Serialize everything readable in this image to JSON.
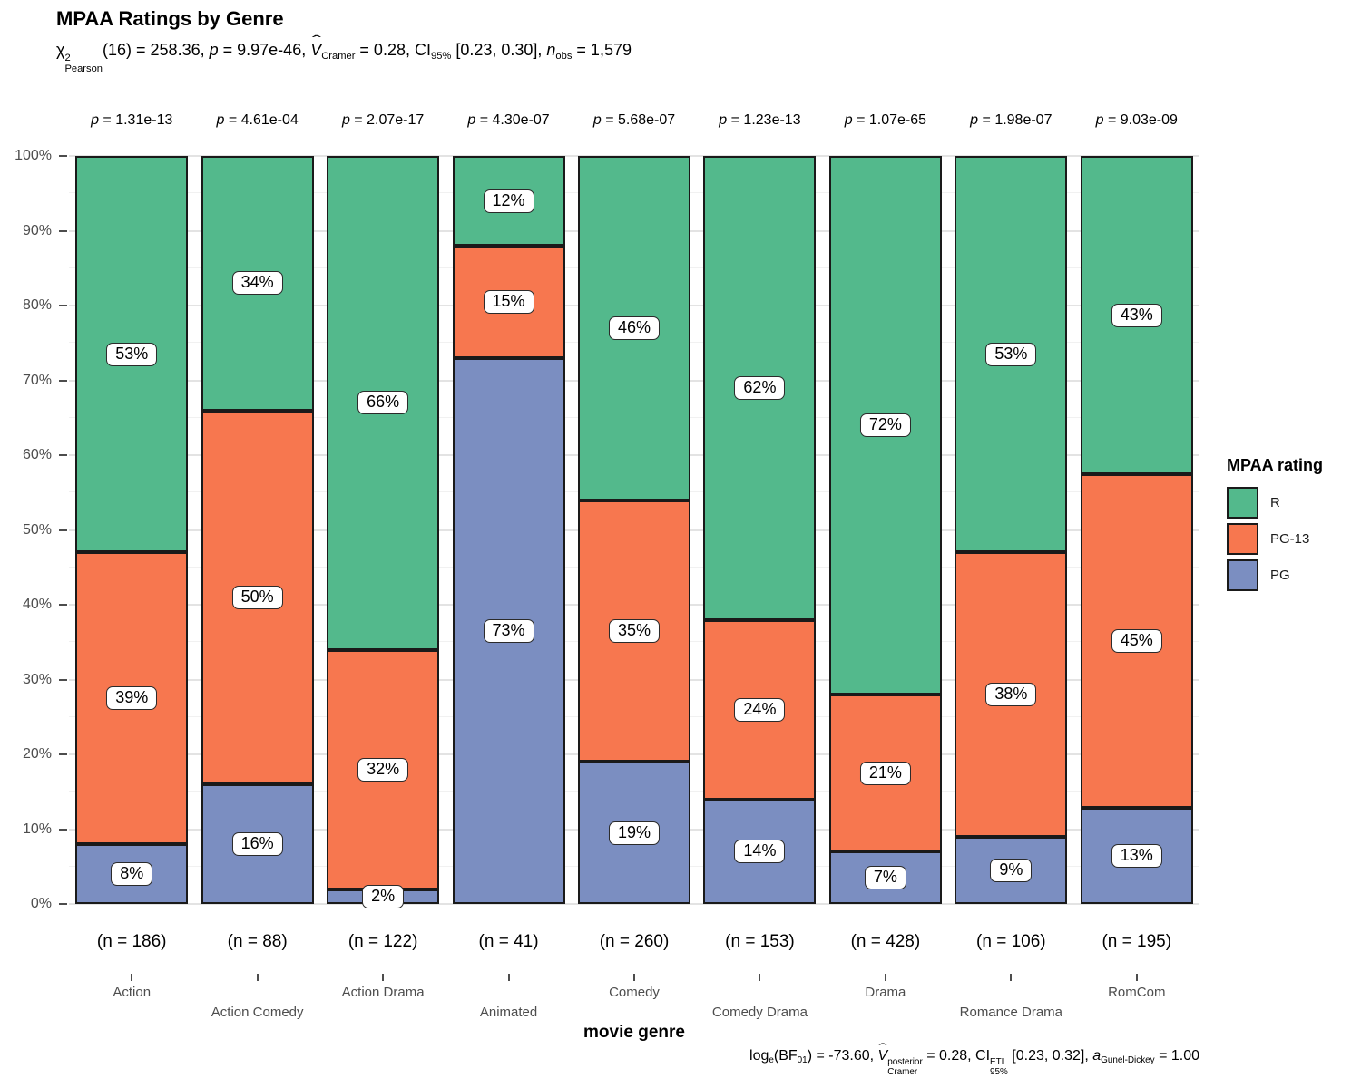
{
  "title": "MPAA Ratings by Genre",
  "xlabel": "movie genre",
  "subtitle_tokens": [
    {
      "t": "χ"
    },
    {
      "stack": {
        "sup": "2",
        "sub": "Pearson"
      }
    },
    {
      "t": "(16) = 258.36, "
    },
    {
      "t": "p",
      "i": true
    },
    {
      "t": " = 9.97e-46, "
    },
    {
      "t": "V",
      "i": true,
      "hat": true
    },
    {
      "sub": "Cramer"
    },
    {
      "t": " = 0.28, CI"
    },
    {
      "sub": "95%"
    },
    {
      "t": " [0.23, 0.30], "
    },
    {
      "t": "n",
      "i": true
    },
    {
      "sub": "obs"
    },
    {
      "t": " = 1,579"
    }
  ],
  "caption_tokens": [
    {
      "t": "log"
    },
    {
      "sub": "e"
    },
    {
      "t": "(BF"
    },
    {
      "sub": "01"
    },
    {
      "t": ") = -73.60, "
    },
    {
      "t": "V",
      "i": true,
      "hat": true
    },
    {
      "stack": {
        "sup": "posterior",
        "sub": "Cramer"
      }
    },
    {
      "t": " = 0.28, CI"
    },
    {
      "stack": {
        "sup": "ETI",
        "sub": "95%"
      }
    },
    {
      "t": " [0.23, 0.32], "
    },
    {
      "t": "a",
      "i": true
    },
    {
      "sub": "Gunel-Dickey"
    },
    {
      "t": " = 1.00"
    }
  ],
  "legend": {
    "title": "MPAA rating",
    "items": [
      {
        "label": "R",
        "color": "#53B98C"
      },
      {
        "label": "PG-13",
        "color": "#F7774F"
      },
      {
        "label": "PG",
        "color": "#7B8EC1"
      }
    ]
  },
  "chart_data": {
    "type": "bar",
    "stacked": true,
    "percent_normalized": true,
    "title": "MPAA Ratings by Genre",
    "xlabel": "movie genre",
    "ylabel": "",
    "ylim": [
      0,
      100
    ],
    "y_major_step": 10,
    "y_minor_step": 5,
    "y_tick_suffix": "%",
    "grid": true,
    "legend_position": "right",
    "categories": [
      "Action",
      "Action Comedy",
      "Action Drama",
      "Animated",
      "Comedy",
      "Comedy Drama",
      "Drama",
      "Romance Drama",
      "RomCom"
    ],
    "n_labels": [
      "(n = 186)",
      "(n = 88)",
      "(n = 122)",
      "(n = 41)",
      "(n = 260)",
      "(n = 153)",
      "(n = 428)",
      "(n = 106)",
      "(n = 195)"
    ],
    "p_labels": [
      "p = 1.31e-13",
      "p = 4.61e-04",
      "p = 2.07e-17",
      "p = 4.30e-07",
      "p = 5.68e-07",
      "p = 1.23e-13",
      "p = 1.07e-65",
      "p = 1.98e-07",
      "p = 9.03e-09"
    ],
    "series": [
      {
        "name": "PG",
        "color": "#7B8EC1",
        "values": [
          8,
          16,
          2,
          73,
          19,
          14,
          7,
          9,
          13
        ]
      },
      {
        "name": "PG-13",
        "color": "#F7774F",
        "values": [
          39,
          50,
          32,
          15,
          35,
          24,
          21,
          38,
          45
        ]
      },
      {
        "name": "R",
        "color": "#53B98C",
        "values": [
          53,
          34,
          66,
          12,
          46,
          62,
          72,
          53,
          43
        ]
      }
    ],
    "series_order": "bottom-to-top",
    "bar_label_suffix": "%"
  }
}
